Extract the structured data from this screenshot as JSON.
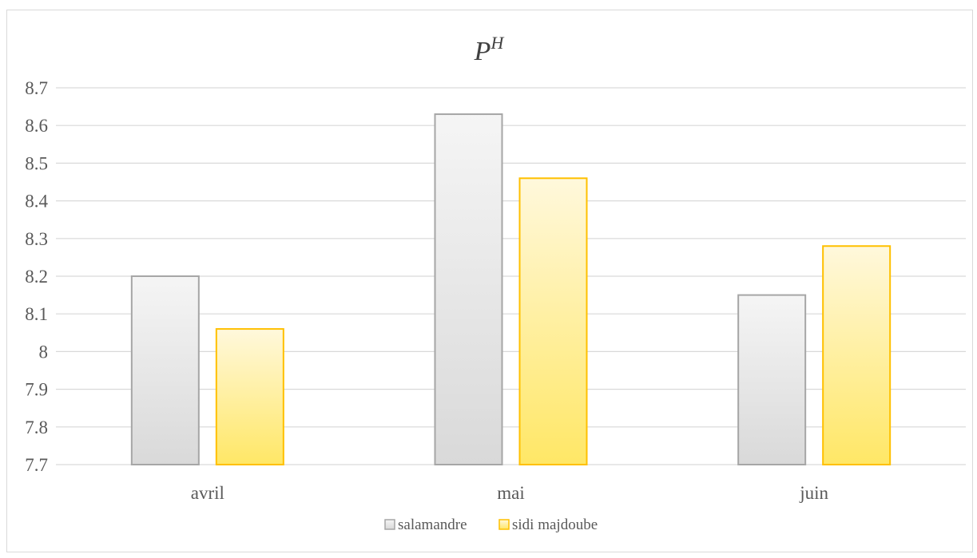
{
  "chart_data": {
    "type": "bar",
    "title": "P",
    "title_superscript": "H",
    "xlabel": "",
    "ylabel": "",
    "categories": [
      "avril",
      "mai",
      "juin"
    ],
    "series": [
      {
        "name": "salamandre",
        "values": [
          8.2,
          8.63,
          8.15
        ]
      },
      {
        "name": "sidi majdoube",
        "values": [
          8.06,
          8.46,
          8.28
        ]
      }
    ],
    "ylim": [
      7.7,
      8.7
    ],
    "yticks": [
      "7.7",
      "7.8",
      "7.9",
      "8",
      "8.1",
      "8.2",
      "8.3",
      "8.4",
      "8.5",
      "8.6",
      "8.7"
    ],
    "grid": true,
    "legend_position": "bottom",
    "colors": {
      "salamandre_fill_top": "#f5f5f5",
      "salamandre_fill_bottom": "#d9d9d9",
      "salamandre_border": "#a6a6a6",
      "sidi_majdoube_fill_top": "#fff8dc",
      "sidi_majdoube_fill_bottom": "#ffe766",
      "sidi_majdoube_border": "#ffc000",
      "gridline": "#d9d9d9"
    }
  }
}
